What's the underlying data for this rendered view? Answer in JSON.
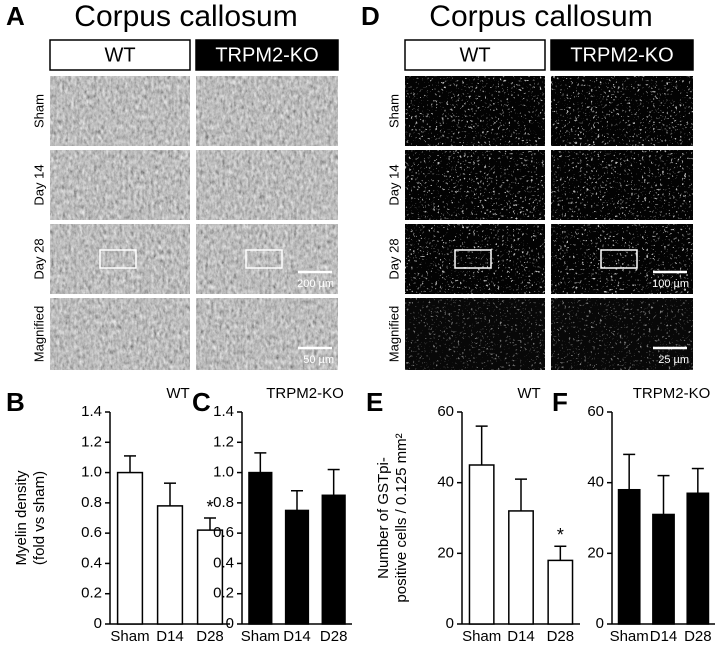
{
  "panels": [
    {
      "label": "A",
      "title": "Corpus callosum",
      "columns": [
        "WT",
        "TRPM2-KO"
      ],
      "rows": [
        "Sham",
        "Day 14",
        "Day 28",
        "Magnified"
      ],
      "scale_bars": [
        "200 µm",
        "50 µm"
      ],
      "style": "myelin"
    },
    {
      "label": "D",
      "title": "Corpus callosum",
      "columns": [
        "WT",
        "TRPM2-KO"
      ],
      "rows": [
        "Sham",
        "Day 14",
        "Day 28",
        "Magnified"
      ],
      "scale_bars": [
        "100 µm",
        "25 µm"
      ],
      "style": "fluorescence"
    }
  ],
  "chart_data": [
    {
      "type": "bar",
      "panel_label": "B",
      "title": "WT",
      "ylabel": [
        "Myelin density",
        "(fold vs sham)"
      ],
      "categories": [
        "Sham",
        "D14",
        "D28"
      ],
      "values": [
        1.0,
        0.78,
        0.62
      ],
      "errors": [
        0.11,
        0.15,
        0.08
      ],
      "annotations": [
        null,
        null,
        "*"
      ],
      "color": "#ffffff",
      "ylim": [
        0,
        1.4
      ],
      "yticks": [
        0,
        0.2,
        0.4,
        0.6,
        0.8,
        {
          "value": 1,
          "label": "1.0"
        },
        1.2,
        1.4
      ]
    },
    {
      "type": "bar",
      "panel_label": "C",
      "title": "TRPM2-KO",
      "categories": [
        "Sham",
        "D14",
        "D28"
      ],
      "values": [
        1.0,
        0.75,
        0.85
      ],
      "errors": [
        0.13,
        0.13,
        0.17
      ],
      "color": "#000000",
      "ylim": [
        0,
        1.4
      ],
      "yticks": [
        0,
        0.2,
        0.4,
        0.6,
        0.8,
        {
          "value": 1,
          "label": "1.0"
        },
        1.2,
        1.4
      ]
    },
    {
      "type": "bar",
      "panel_label": "E",
      "title": "WT",
      "ylabel": [
        "Number of GSTpi-",
        "positive cells / 0.125 mm²"
      ],
      "categories": [
        "Sham",
        "D14",
        "D28"
      ],
      "values": [
        45,
        32,
        18
      ],
      "errors": [
        11,
        9,
        4
      ],
      "annotations": [
        null,
        null,
        "*"
      ],
      "color": "#ffffff",
      "ylim": [
        0,
        60
      ],
      "yticks": [
        0,
        20,
        40,
        60
      ]
    },
    {
      "type": "bar",
      "panel_label": "F",
      "title": "TRPM2-KO",
      "categories": [
        "Sham",
        "D14",
        "D28"
      ],
      "values": [
        38,
        31,
        37
      ],
      "errors": [
        10,
        11,
        7
      ],
      "color": "#000000",
      "ylim": [
        0,
        60
      ],
      "yticks": [
        0,
        20,
        40,
        60
      ]
    }
  ]
}
